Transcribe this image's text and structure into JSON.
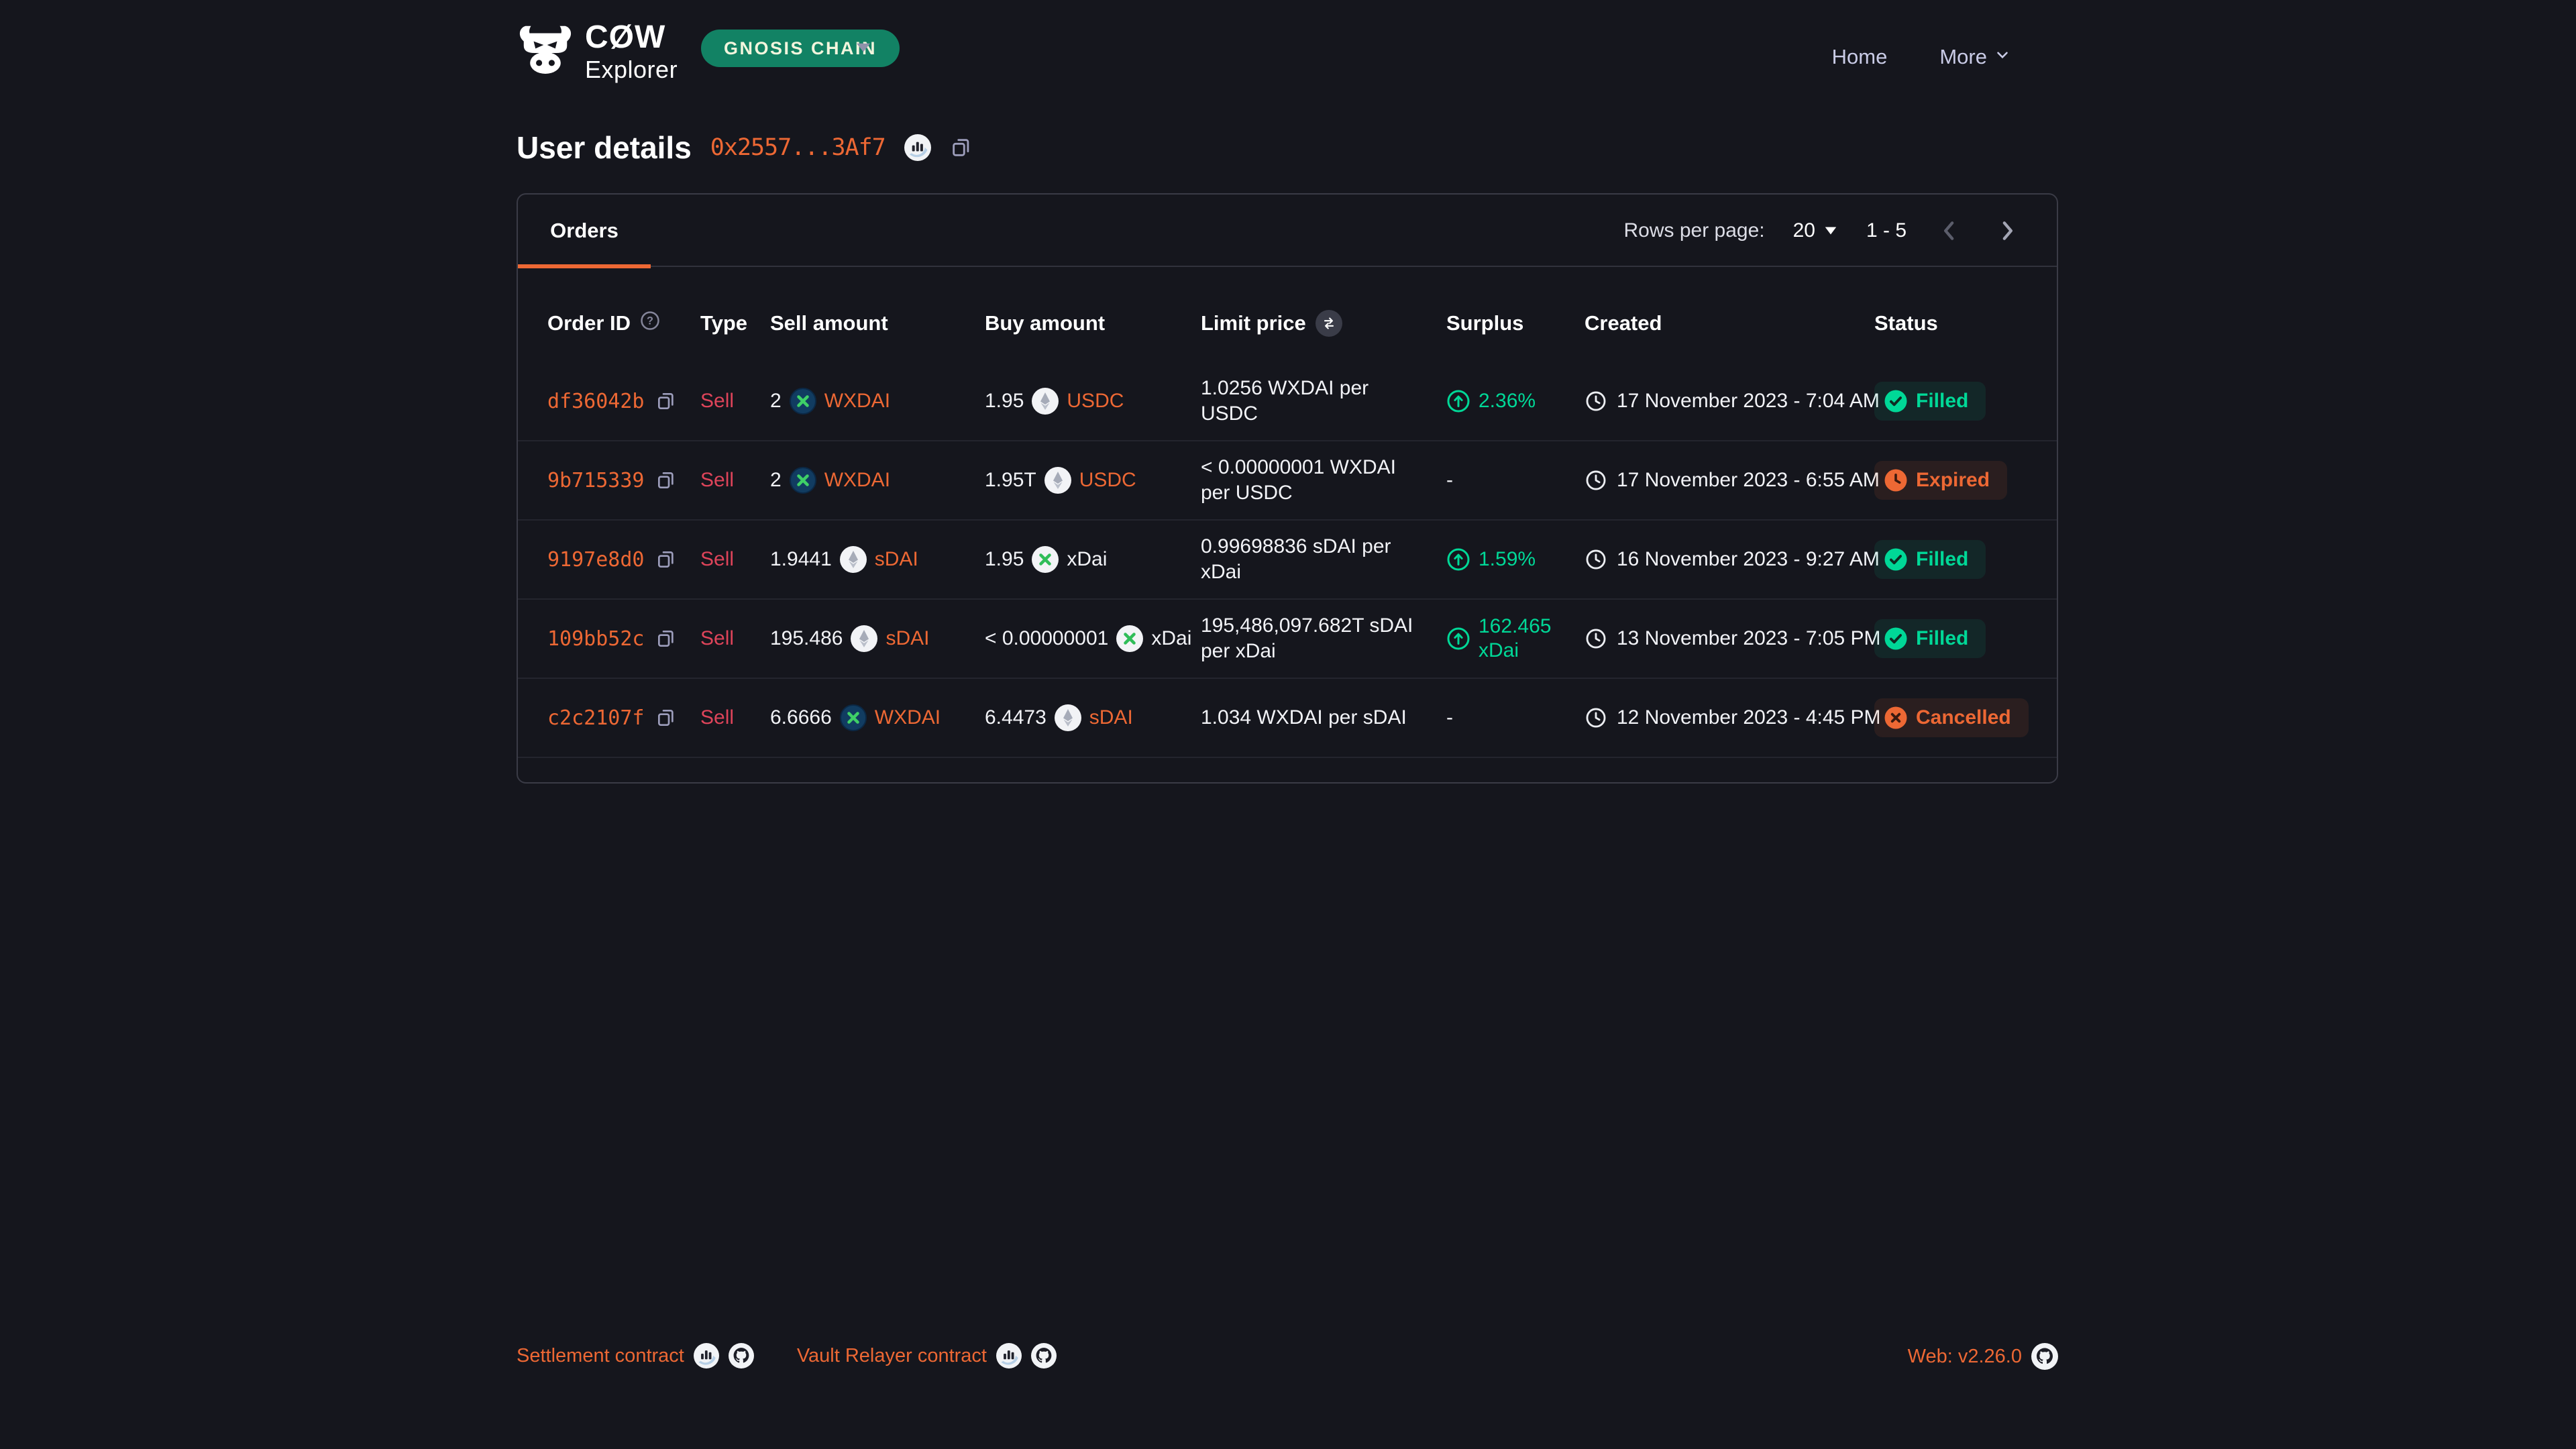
{
  "colors": {
    "accent_orange": "#ED6834",
    "sell_red": "#DE445A",
    "green": "#00D897",
    "network_badge_green": "#128264",
    "page_background": "#15161d"
  },
  "topbar": {
    "logo": {
      "brand": "CØW",
      "subtitle": "Explorer"
    },
    "network_badge": {
      "label": "GNOSIS CHAIN"
    },
    "nav": [
      {
        "label": "Home"
      },
      {
        "label": "More"
      }
    ]
  },
  "page_header": {
    "title": "User details",
    "address": "0x2557...3Af7"
  },
  "card": {
    "tab": {
      "label": "Orders"
    },
    "pagination": {
      "rows_per_page_label": "Rows per page:",
      "rows_per_page_value": "20",
      "range": "1 - 5"
    }
  },
  "table": {
    "columns": [
      "Order ID",
      "Type",
      "Sell amount",
      "Buy amount",
      "Limit price",
      "Surplus",
      "Created",
      "Status"
    ],
    "empty_placeholder": "-",
    "rows": [
      {
        "order_id": "df36042b",
        "type": "Sell",
        "sell": {
          "amount": "2",
          "token": "WXDAI",
          "icon": "gnosis-dark",
          "accent": true
        },
        "buy": {
          "amount": "1.95",
          "token": "USDC",
          "icon": "generic",
          "accent": true
        },
        "limit_price": "1.0256 WXDAI per USDC",
        "surplus": "2.36%",
        "created": "17 November 2023 - 7:04 AM",
        "status": {
          "label": "Filled",
          "kind": "filled"
        }
      },
      {
        "order_id": "9b715339",
        "type": "Sell",
        "sell": {
          "amount": "2",
          "token": "WXDAI",
          "icon": "gnosis-dark",
          "accent": true
        },
        "buy": {
          "amount": "1.95T",
          "token": "USDC",
          "icon": "generic",
          "accent": true
        },
        "limit_price": "< 0.00000001 WXDAI per USDC",
        "surplus": null,
        "created": "17 November 2023 - 6:55 AM",
        "status": {
          "label": "Expired",
          "kind": "expired"
        }
      },
      {
        "order_id": "9197e8d0",
        "type": "Sell",
        "sell": {
          "amount": "1.9441",
          "token": "sDAI",
          "icon": "generic",
          "accent": true
        },
        "buy": {
          "amount": "1.95",
          "token": "xDai",
          "icon": "gnosis-light",
          "accent": false
        },
        "limit_price": "0.99698836 sDAI per xDai",
        "surplus": "1.59%",
        "created": "16 November 2023 - 9:27 AM",
        "status": {
          "label": "Filled",
          "kind": "filled"
        }
      },
      {
        "order_id": "109bb52c",
        "type": "Sell",
        "sell": {
          "amount": "195.486",
          "token": "sDAI",
          "icon": "generic",
          "accent": true
        },
        "buy": {
          "amount": "< 0.00000001",
          "token": "xDai",
          "icon": "gnosis-light",
          "accent": false
        },
        "limit_price": "195,486,097.682T sDAI per xDai",
        "surplus": "162.465 xDai",
        "created": "13 November 2023 - 7:05 PM",
        "status": {
          "label": "Filled",
          "kind": "filled"
        }
      },
      {
        "order_id": "c2c2107f",
        "type": "Sell",
        "sell": {
          "amount": "6.6666",
          "token": "WXDAI",
          "icon": "gnosis-dark",
          "accent": true
        },
        "buy": {
          "amount": "6.4473",
          "token": "sDAI",
          "icon": "generic",
          "accent": true
        },
        "limit_price": "1.034 WXDAI per sDAI",
        "surplus": null,
        "created": "12 November 2023 - 4:45 PM",
        "status": {
          "label": "Cancelled",
          "kind": "cancelled"
        }
      }
    ]
  },
  "footer": {
    "links": [
      {
        "label": "Settlement contract"
      },
      {
        "label": "Vault Relayer contract"
      }
    ],
    "version": "Web: v2.26.0"
  }
}
